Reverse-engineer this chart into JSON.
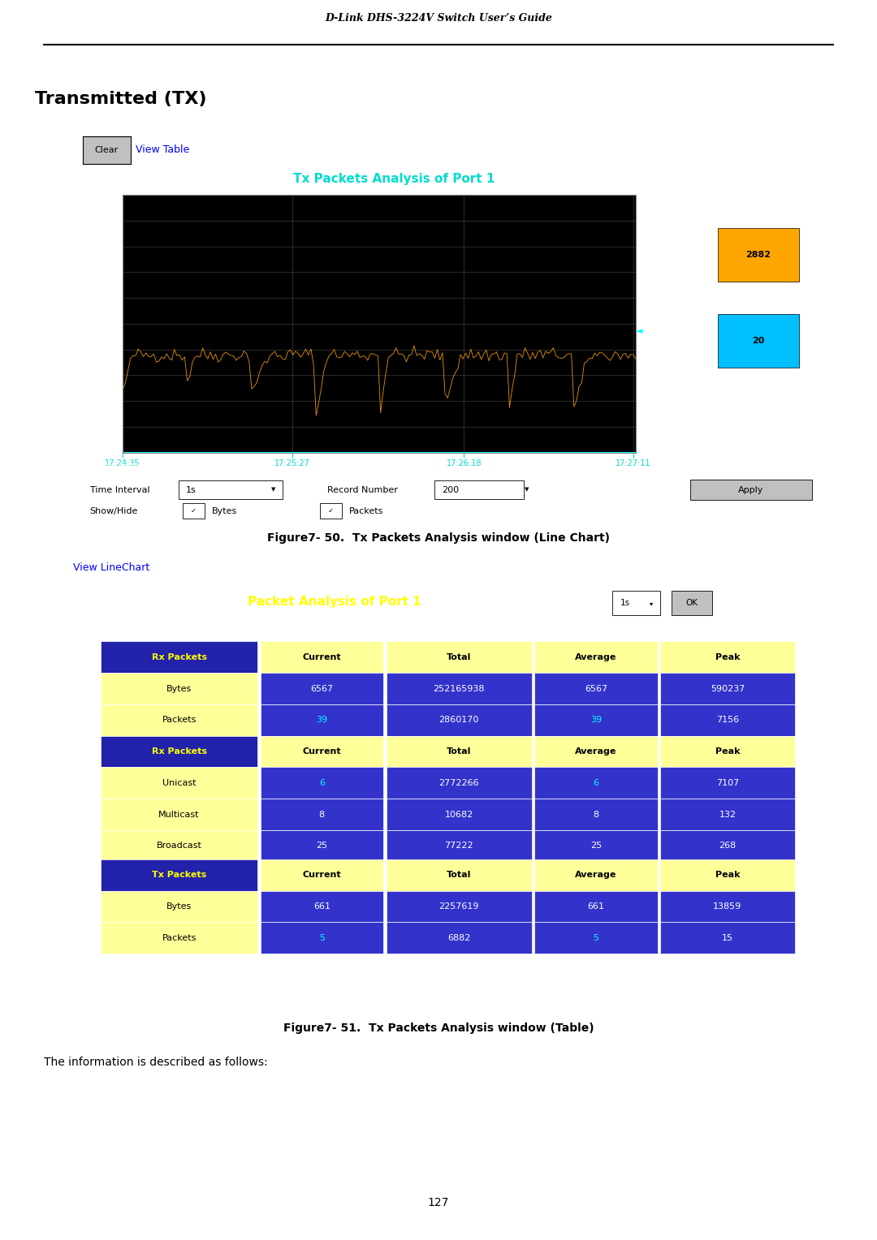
{
  "page_title": "D-Link DHS-3224V Switch User’s Guide",
  "section_title": "Transmitted (TX)",
  "chart_title": "Tx Packets Analysis of Port 1",
  "outer_bg": "#f5f0d8",
  "yticks": [
    0,
    554,
    1108,
    1662,
    2216,
    2770,
    3324,
    3878,
    4432,
    4986,
    5541
  ],
  "xtick_labels": [
    "17:24:35",
    "17:25:27",
    "17:26:18",
    "17:27:11"
  ],
  "bytes_value": "2882",
  "packets_value": "20",
  "bytes_color": "#ffa500",
  "packets_color": "#00bfff",
  "grid_color": "#555555",
  "line_color_bytes": "#ffa500",
  "time_interval": "1s",
  "record_number": "200",
  "figure2_title": "Packet Analysis of Port 1",
  "caption1": "Figure7- 50.  Tx Packets Analysis window (Line Chart)",
  "caption2": "Figure7- 51.  Tx Packets Analysis window (Table)",
  "bottom_text": "The information is described as follows:",
  "page_number": "127",
  "table1": {
    "header": [
      "Rx Packets",
      "Current",
      "Total",
      "Average",
      "Peak"
    ],
    "rows": [
      [
        "Bytes",
        "6567",
        "252165938",
        "6567",
        "590237"
      ],
      [
        "Packets",
        "39",
        "2860170",
        "39",
        "7156"
      ]
    ]
  },
  "table2": {
    "header": [
      "Rx Packets",
      "Current",
      "Total",
      "Average",
      "Peak"
    ],
    "rows": [
      [
        "Unicast",
        "6",
        "2772266",
        "6",
        "7107"
      ],
      [
        "Multicast",
        "8",
        "10682",
        "8",
        "132"
      ],
      [
        "Broadcast",
        "25",
        "77222",
        "25",
        "268"
      ]
    ]
  },
  "table3": {
    "header": [
      "Tx Packets",
      "Current",
      "Total",
      "Average",
      "Peak"
    ],
    "rows": [
      [
        "Bytes",
        "661",
        "2257619",
        "661",
        "13859"
      ],
      [
        "Packets",
        "5",
        "6882",
        "5",
        "15"
      ]
    ]
  }
}
